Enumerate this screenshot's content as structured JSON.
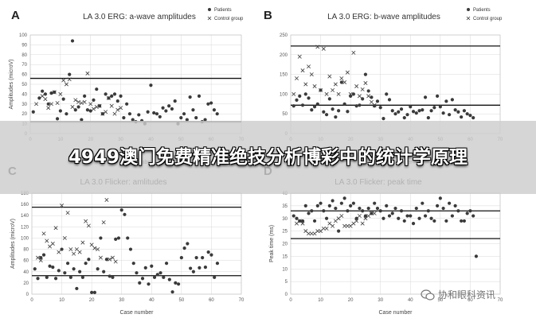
{
  "banner": {
    "text": "4949澳门免费精准绝技分析博彩中的统计学原理"
  },
  "watermark": {
    "text": "协和眼科资讯"
  },
  "legend": {
    "patients": "Patients",
    "controls": "Control group"
  },
  "chart_data": [
    {
      "panel": "A",
      "type": "scatter",
      "title": "LA 3.0 ERG: a-wave amplitudes",
      "xlabel": "Case number",
      "ylabel": "Amplitudes (microV)",
      "xlim": [
        0,
        70
      ],
      "ylim": [
        0,
        100
      ],
      "x_ticks": [
        0,
        10,
        20,
        30,
        40,
        50,
        60,
        70
      ],
      "y_ticks": [
        0,
        10,
        20,
        30,
        40,
        50,
        60,
        70,
        80,
        90,
        100
      ],
      "grid": true,
      "legend": "top-right",
      "reference_lines": [
        56,
        12
      ],
      "series": [
        {
          "name": "Patients",
          "marker": "dot",
          "x": [
            1,
            3,
            4,
            5,
            6,
            7,
            8,
            9,
            10,
            11,
            12,
            13,
            14,
            15,
            16,
            17,
            18,
            19,
            20,
            21,
            22,
            23,
            24,
            25,
            26,
            27,
            28,
            29,
            30,
            31,
            32,
            33,
            34,
            35,
            36,
            37,
            38,
            39,
            40,
            41,
            42,
            43,
            44,
            45,
            46,
            47,
            48,
            49,
            50,
            51,
            52,
            53,
            54,
            55,
            56,
            57,
            58,
            59,
            60,
            61,
            62
          ],
          "y": [
            22,
            36,
            43,
            40,
            30,
            41,
            42,
            15,
            23,
            35,
            20,
            60,
            94,
            24,
            27,
            14,
            38,
            24,
            23,
            34,
            45,
            28,
            20,
            40,
            36,
            38,
            40,
            33,
            38,
            16,
            30,
            20,
            14,
            12,
            19,
            13,
            10,
            22,
            49,
            21,
            20,
            17,
            26,
            23,
            28,
            25,
            33,
            10,
            16,
            20,
            14,
            37,
            24,
            16,
            38,
            12,
            14,
            30,
            31,
            24,
            20
          ]
        },
        {
          "name": "Control group",
          "marker": "x",
          "x": [
            2,
            4,
            5,
            6,
            7,
            8,
            9,
            10,
            11,
            12,
            13,
            14,
            15,
            16,
            17,
            18,
            19,
            20,
            21,
            22,
            23,
            24,
            25,
            26,
            27,
            28,
            29,
            30
          ],
          "y": [
            30,
            38,
            35,
            26,
            30,
            42,
            31,
            40,
            54,
            50,
            55,
            27,
            34,
            32,
            31,
            32,
            61,
            30,
            25,
            27,
            28,
            20,
            22,
            36,
            28,
            20,
            24,
            26
          ]
        }
      ]
    },
    {
      "panel": "B",
      "type": "scatter",
      "title": "LA 3.0 ERG: b-wave amplitudes",
      "xlabel": "Case number",
      "ylabel": "",
      "xlim": [
        0,
        70
      ],
      "ylim": [
        0,
        250
      ],
      "x_ticks": [
        0,
        10,
        20,
        30,
        40,
        50,
        60,
        70
      ],
      "y_ticks": [
        0,
        50,
        100,
        150,
        200,
        250
      ],
      "grid": true,
      "legend": "top-right",
      "reference_lines": [
        222,
        72
      ],
      "series": [
        {
          "name": "Patients",
          "marker": "dot",
          "x": [
            1,
            2,
            3,
            4,
            5,
            6,
            7,
            8,
            9,
            10,
            11,
            12,
            13,
            14,
            15,
            16,
            17,
            18,
            19,
            20,
            21,
            22,
            23,
            24,
            25,
            26,
            27,
            28,
            29,
            30,
            31,
            32,
            33,
            34,
            35,
            36,
            37,
            38,
            39,
            40,
            41,
            42,
            43,
            44,
            45,
            46,
            47,
            48,
            49,
            50,
            51,
            52,
            53,
            54,
            55,
            56,
            57,
            58,
            59,
            60,
            61
          ],
          "y": [
            70,
            85,
            95,
            72,
            100,
            90,
            60,
            68,
            75,
            110,
            55,
            48,
            88,
            62,
            42,
            58,
            130,
            75,
            56,
            95,
            100,
            70,
            72,
            88,
            150,
            108,
            92,
            70,
            82,
            66,
            38,
            100,
            86,
            58,
            50,
            55,
            62,
            40,
            48,
            68,
            56,
            52,
            58,
            60,
            92,
            40,
            58,
            66,
            95,
            68,
            52,
            82,
            48,
            86,
            60,
            55,
            42,
            58,
            50,
            46,
            40
          ]
        },
        {
          "name": "Control group",
          "marker": "x",
          "x": [
            1,
            2,
            3,
            4,
            5,
            6,
            7,
            8,
            9,
            10,
            11,
            12,
            13,
            14,
            15,
            16,
            17,
            18,
            19,
            20,
            21,
            22,
            23,
            24,
            25,
            26,
            27,
            28
          ],
          "y": [
            100,
            140,
            195,
            160,
            125,
            170,
            150,
            120,
            220,
            110,
            215,
            100,
            145,
            110,
            125,
            100,
            140,
            130,
            155,
            100,
            205,
            120,
            95,
            112,
            128,
            95,
            80,
            72
          ]
        }
      ]
    },
    {
      "panel": "C",
      "type": "scatter",
      "title": "LA 3.0 Flicker: amlitudes",
      "xlabel": "Case number",
      "ylabel": "Amplitudes (microV)",
      "xlim": [
        0,
        70
      ],
      "ylim": [
        0,
        180
      ],
      "x_ticks": [
        0,
        10,
        20,
        30,
        40,
        50,
        60,
        70
      ],
      "y_ticks": [
        0,
        20,
        40,
        60,
        80,
        100,
        120,
        140,
        160,
        180
      ],
      "grid": true,
      "legend": "",
      "reference_lines": [
        155,
        33
      ],
      "series": [
        {
          "name": "Patients",
          "marker": "dot",
          "x": [
            1,
            2,
            3,
            4,
            5,
            6,
            7,
            8,
            9,
            10,
            11,
            12,
            13,
            14,
            15,
            16,
            17,
            18,
            19,
            20,
            21,
            22,
            23,
            24,
            25,
            26,
            27,
            28,
            29,
            30,
            31,
            32,
            33,
            34,
            35,
            36,
            37,
            38,
            39,
            40,
            41,
            42,
            43,
            44,
            45,
            46,
            47,
            48,
            49,
            50,
            51,
            52,
            53,
            54,
            55,
            56,
            57,
            58,
            59,
            60,
            61,
            62
          ],
          "y": [
            45,
            28,
            65,
            70,
            30,
            50,
            48,
            28,
            42,
            80,
            38,
            55,
            30,
            45,
            10,
            40,
            30,
            55,
            62,
            3,
            3,
            45,
            100,
            40,
            62,
            32,
            30,
            98,
            100,
            150,
            142,
            100,
            80,
            55,
            38,
            20,
            28,
            47,
            18,
            50,
            30,
            35,
            38,
            30,
            55,
            26,
            4,
            20,
            18,
            65,
            82,
            90,
            46,
            40,
            65,
            47,
            65,
            48,
            75,
            70,
            30,
            55
          ]
        },
        {
          "name": "Control group",
          "marker": "x",
          "x": [
            2,
            3,
            4,
            5,
            6,
            7,
            8,
            9,
            10,
            11,
            12,
            13,
            14,
            15,
            16,
            17,
            18,
            19,
            20,
            21,
            22,
            23,
            24,
            25,
            26,
            27,
            28
          ],
          "y": [
            65,
            60,
            108,
            95,
            85,
            90,
            118,
            75,
            158,
            100,
            145,
            80,
            72,
            80,
            75,
            92,
            130,
            122,
            88,
            82,
            80,
            65,
            128,
            168,
            62,
            65,
            58
          ]
        }
      ]
    },
    {
      "panel": "D",
      "type": "scatter",
      "title": "LA 3.0 Flicker: peak time",
      "xlabel": "Case number",
      "ylabel": "Peak time (ms)",
      "xlim": [
        0,
        70
      ],
      "ylim": [
        0,
        40
      ],
      "x_ticks": [
        0,
        10,
        20,
        30,
        40,
        50,
        60,
        70
      ],
      "y_ticks": [
        0,
        5,
        10,
        15,
        20,
        25,
        30,
        35,
        40
      ],
      "grid": true,
      "legend": "",
      "reference_lines": [
        33,
        22
      ],
      "series": [
        {
          "name": "Patients",
          "marker": "dot",
          "x": [
            1,
            2,
            3,
            4,
            5,
            6,
            7,
            8,
            9,
            10,
            11,
            12,
            13,
            14,
            15,
            16,
            17,
            18,
            19,
            20,
            21,
            22,
            23,
            24,
            25,
            26,
            27,
            28,
            29,
            30,
            31,
            32,
            33,
            34,
            35,
            36,
            37,
            38,
            39,
            40,
            41,
            42,
            43,
            44,
            45,
            46,
            47,
            48,
            49,
            50,
            51,
            52,
            53,
            54,
            55,
            56,
            57,
            58,
            59,
            60,
            61,
            62
          ],
          "y": [
            31,
            30,
            29,
            29,
            35,
            32,
            33,
            29,
            35,
            36,
            33,
            30,
            35,
            37,
            34,
            25,
            36,
            38,
            33,
            35,
            36,
            30,
            34,
            33,
            31,
            34,
            32,
            36,
            34,
            33,
            30,
            35,
            31,
            32,
            34,
            30,
            33,
            29,
            31,
            31,
            28,
            34,
            30,
            36,
            31,
            33,
            30,
            29,
            35,
            38,
            34,
            29,
            36,
            31,
            35,
            33,
            29,
            29,
            32,
            33,
            31,
            15
          ]
        },
        {
          "name": "Control group",
          "marker": "x",
          "x": [
            2,
            3,
            4,
            5,
            6,
            7,
            8,
            9,
            10,
            11,
            12,
            13,
            14,
            15,
            16,
            17,
            18,
            19,
            20,
            21,
            22,
            23,
            24,
            25,
            26,
            27,
            28
          ],
          "y": [
            28,
            29,
            28,
            25,
            24,
            24,
            24,
            25,
            25,
            26,
            26,
            28,
            27,
            29,
            30,
            31,
            27,
            27,
            27,
            28,
            29,
            31,
            28,
            30,
            31,
            32,
            32
          ]
        }
      ]
    }
  ]
}
